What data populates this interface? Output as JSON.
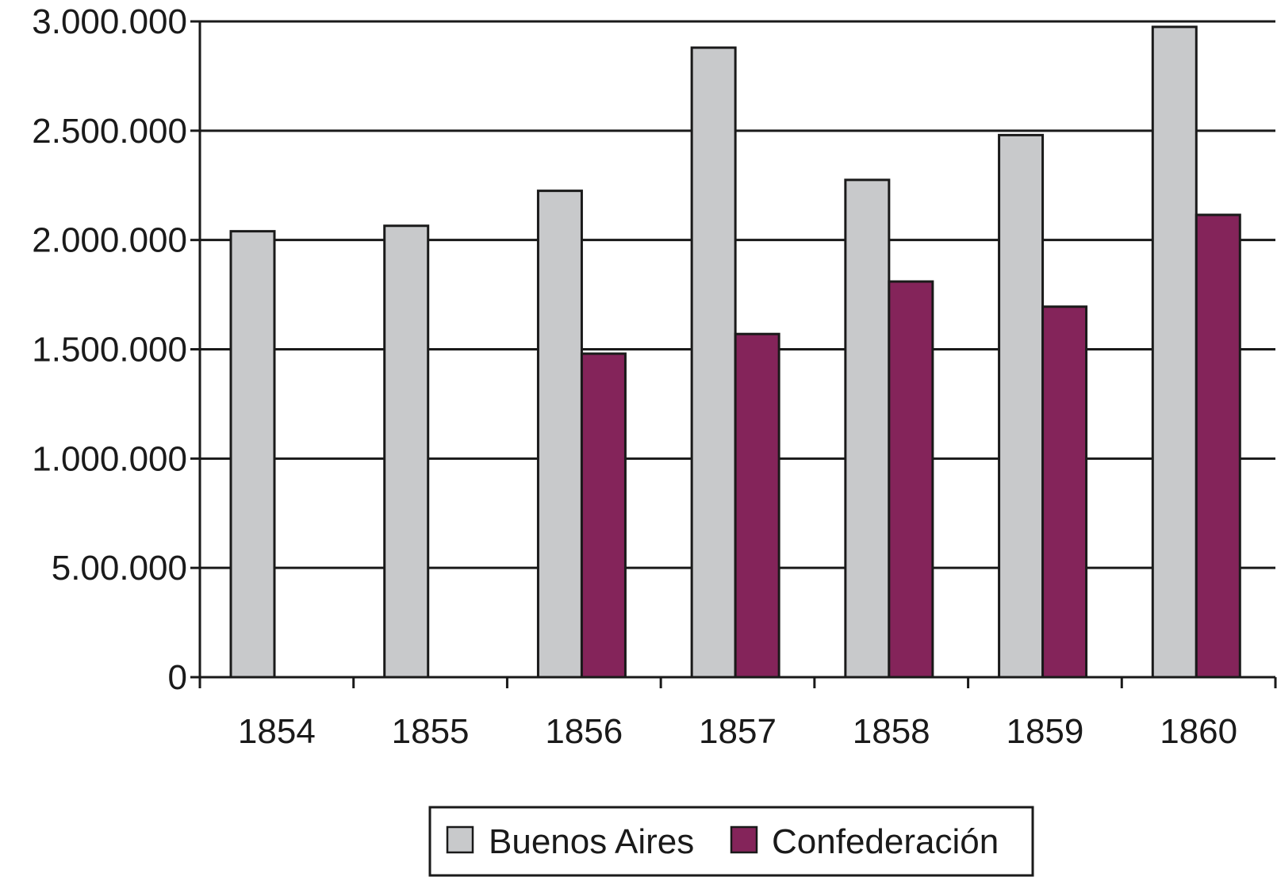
{
  "chart_data": {
    "type": "bar",
    "categories": [
      "1854",
      "1855",
      "1856",
      "1857",
      "1858",
      "1859",
      "1860"
    ],
    "series": [
      {
        "name": "Buenos Aires",
        "color": "#c8c9cb",
        "values": [
          2040000,
          2065000,
          2225000,
          2880000,
          2275000,
          2480000,
          2975000
        ]
      },
      {
        "name": "Confederación",
        "color": "#84245a",
        "values": [
          null,
          null,
          1480000,
          1570000,
          1810000,
          1695000,
          2115000
        ]
      }
    ],
    "y_ticks": [
      {
        "value": 0,
        "label": "0"
      },
      {
        "value": 500000,
        "label": "5.00.000"
      },
      {
        "value": 1000000,
        "label": "1.000.000"
      },
      {
        "value": 1500000,
        "label": "1.500.000"
      },
      {
        "value": 2000000,
        "label": "2.000.000"
      },
      {
        "value": 2500000,
        "label": "2.500.000"
      },
      {
        "value": 3000000,
        "label": "3.000.000"
      }
    ],
    "ylim": [
      0,
      3000000
    ],
    "grid": true,
    "legend_position": "bottom-center"
  }
}
